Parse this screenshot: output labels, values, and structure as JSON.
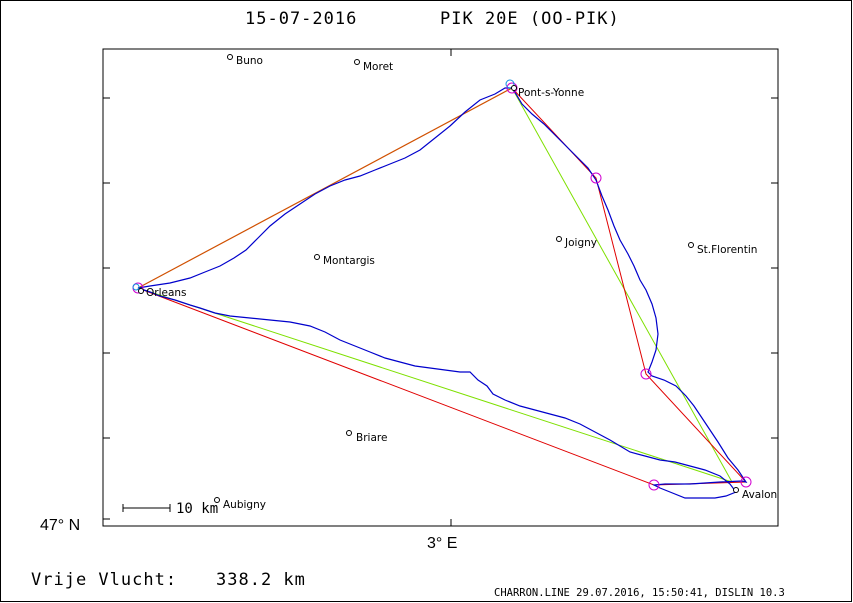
{
  "header": {
    "date": "15-07-2016",
    "aircraft": "PIK 20E (OO-PIK)"
  },
  "axis": {
    "lat_label": "47° N",
    "lon_label": "3° E"
  },
  "towns": [
    {
      "name": "Buno"
    },
    {
      "name": "Moret"
    },
    {
      "name": "Pont-s-Yonne"
    },
    {
      "name": "Joigny"
    },
    {
      "name": "St.Florentin"
    },
    {
      "name": "Montargis"
    },
    {
      "name": "Orleans"
    },
    {
      "name": "Briare"
    },
    {
      "name": "Aubigny"
    },
    {
      "name": "Avalon"
    }
  ],
  "scale": {
    "label": "10 km"
  },
  "footer": {
    "distance_label": "Vrije Vlucht:",
    "distance_value": "338.2 km",
    "credit": "CHARRON.LINE 29.07.2016, 15:50:41, DISLIN 10.3"
  },
  "colors": {
    "track": "#0000cc",
    "task_line": "#e00000",
    "optimal_line": "#7ee000",
    "start_leg": "#d05000",
    "turnpoint": "#d000d0"
  }
}
